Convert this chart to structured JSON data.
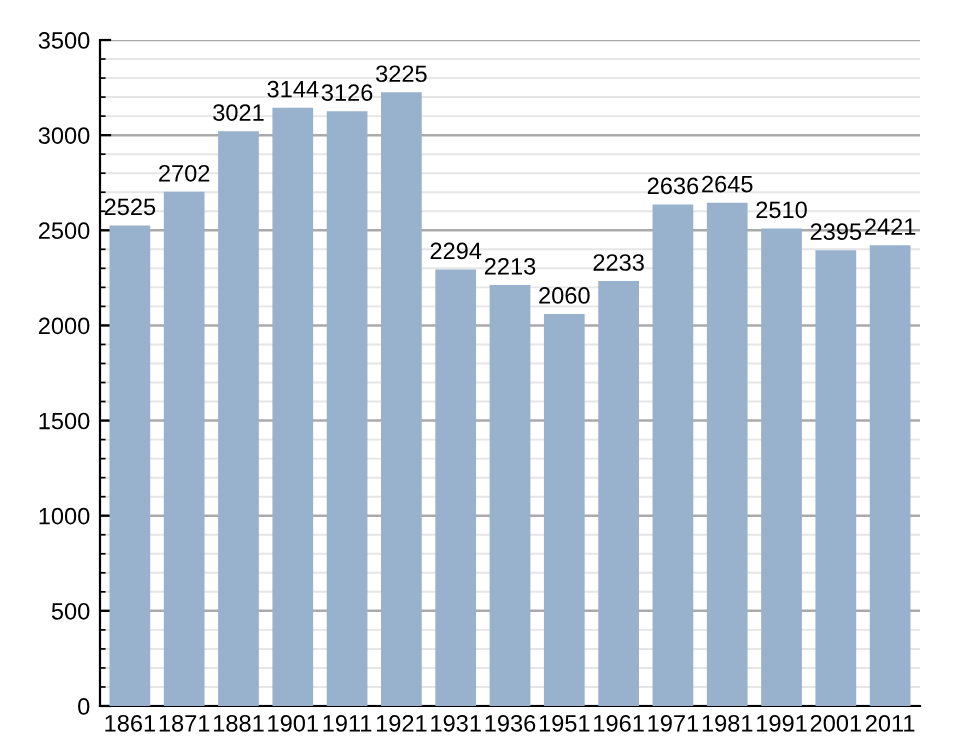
{
  "chart_data": {
    "type": "bar",
    "categories": [
      "1861",
      "1871",
      "1881",
      "1901",
      "1911",
      "1921",
      "1931",
      "1936",
      "1951",
      "1961",
      "1971",
      "1981",
      "1991",
      "2001",
      "2011"
    ],
    "values": [
      2525,
      2702,
      3021,
      3144,
      3126,
      3225,
      2294,
      2213,
      2060,
      2233,
      2636,
      2645,
      2510,
      2395,
      2421
    ],
    "color": "#98b1cc",
    "ylim": [
      0,
      3500
    ],
    "yticks": [
      0,
      500,
      1000,
      1500,
      2000,
      2500,
      3000,
      3500
    ],
    "grid": "y",
    "data_labels": true
  }
}
